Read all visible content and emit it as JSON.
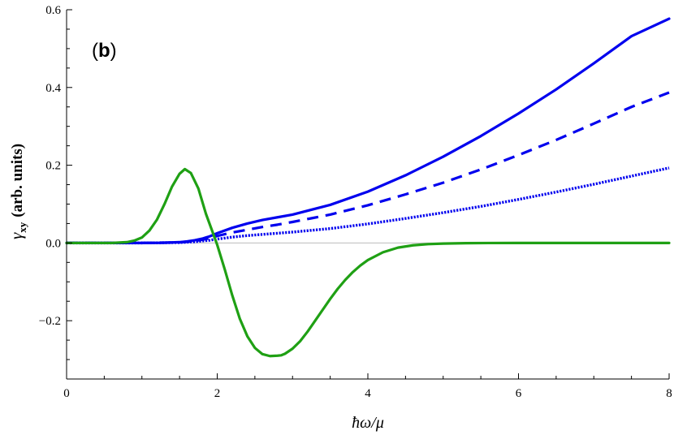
{
  "chart_data": {
    "type": "line",
    "panel_label": "(b)",
    "panel_letter": "b",
    "xlabel": "ħω/μ",
    "ylabel_symbol": "γ",
    "ylabel_subscript": "xy",
    "ylabel_rest": "(arb. units)",
    "xlim": [
      0,
      8
    ],
    "ylim": [
      -0.35,
      0.6
    ],
    "x_ticks": [
      0,
      2,
      4,
      6,
      8
    ],
    "x_tick_labels": [
      "0",
      "2",
      "4",
      "6",
      "8"
    ],
    "y_ticks": [
      -0.2,
      0.0,
      0.2,
      0.4,
      0.6
    ],
    "y_tick_labels": [
      "−0.2",
      "0.0",
      "0.2",
      "0.4",
      "0.6"
    ],
    "zero_line": true,
    "grid": false,
    "colors": {
      "blue": "#0000ee",
      "green": "#1fa014",
      "zero_line": "#bbbbbb"
    },
    "series": [
      {
        "style": "solid",
        "color": "#0000ee",
        "x": [
          0,
          1.0,
          1.3,
          1.5,
          1.6,
          1.7,
          1.8,
          1.9,
          2.0,
          2.2,
          2.4,
          2.6,
          2.8,
          3.0,
          3.5,
          4.0,
          4.5,
          5.0,
          5.5,
          6.0,
          6.5,
          7.0,
          7.5,
          8.0
        ],
        "y": [
          0,
          0,
          0.0005,
          0.002,
          0.004,
          0.007,
          0.011,
          0.017,
          0.025,
          0.039,
          0.05,
          0.059,
          0.066,
          0.073,
          0.098,
          0.132,
          0.174,
          0.222,
          0.275,
          0.333,
          0.395,
          0.462,
          0.532,
          0.577
        ]
      },
      {
        "style": "dashed",
        "color": "#0000ee",
        "x": [
          0,
          1.0,
          1.5,
          1.7,
          1.9,
          2.0,
          2.2,
          2.4,
          2.6,
          2.8,
          3.0,
          3.5,
          4.0,
          4.5,
          5.0,
          5.5,
          6.0,
          6.5,
          7.0,
          7.5,
          8.0
        ],
        "y": [
          0,
          0,
          0.0015,
          0.005,
          0.012,
          0.018,
          0.027,
          0.034,
          0.041,
          0.047,
          0.054,
          0.073,
          0.097,
          0.125,
          0.155,
          0.189,
          0.226,
          0.265,
          0.307,
          0.35,
          0.387
        ]
      },
      {
        "style": "dotted",
        "color": "#0000ee",
        "x": [
          0,
          1.0,
          1.5,
          1.7,
          1.9,
          2.0,
          2.2,
          2.4,
          2.6,
          2.8,
          3.0,
          3.5,
          4.0,
          4.5,
          5.0,
          5.5,
          6.0,
          6.5,
          7.0,
          7.5,
          8.0
        ],
        "y": [
          0,
          0,
          0.001,
          0.003,
          0.007,
          0.01,
          0.015,
          0.019,
          0.022,
          0.025,
          0.028,
          0.037,
          0.049,
          0.063,
          0.078,
          0.094,
          0.112,
          0.131,
          0.151,
          0.172,
          0.193
        ]
      },
      {
        "style": "solid",
        "color": "#1fa014",
        "x": [
          0,
          0.6,
          0.8,
          0.9,
          1.0,
          1.1,
          1.2,
          1.3,
          1.4,
          1.5,
          1.57,
          1.65,
          1.75,
          1.85,
          1.95,
          2.0,
          2.1,
          2.2,
          2.3,
          2.4,
          2.5,
          2.6,
          2.7,
          2.8,
          2.85,
          2.9,
          3.0,
          3.1,
          3.2,
          3.3,
          3.4,
          3.5,
          3.6,
          3.7,
          3.8,
          3.9,
          4.0,
          4.2,
          4.4,
          4.6,
          4.8,
          5.0,
          5.3,
          5.6,
          6.0,
          6.5,
          7.0,
          8.0
        ],
        "y": [
          0,
          0,
          0.002,
          0.006,
          0.014,
          0.032,
          0.06,
          0.1,
          0.145,
          0.178,
          0.19,
          0.18,
          0.14,
          0.075,
          0.022,
          -0.005,
          -0.068,
          -0.135,
          -0.195,
          -0.24,
          -0.27,
          -0.286,
          -0.291,
          -0.29,
          -0.289,
          -0.285,
          -0.272,
          -0.253,
          -0.228,
          -0.2,
          -0.172,
          -0.144,
          -0.118,
          -0.095,
          -0.075,
          -0.058,
          -0.044,
          -0.024,
          -0.012,
          -0.006,
          -0.003,
          -0.0015,
          -0.0005,
          -0.0002,
          0,
          0,
          0,
          0
        ]
      }
    ]
  }
}
